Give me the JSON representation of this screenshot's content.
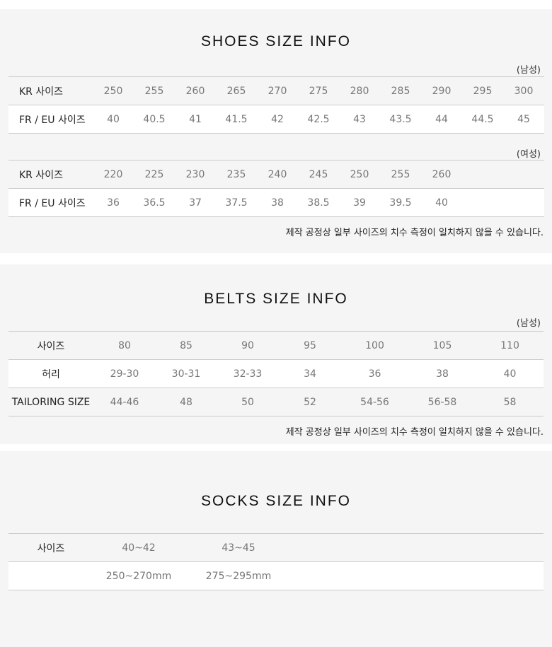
{
  "shoes": {
    "title": "SHOES SIZE INFO",
    "men": {
      "gender": "(남성)",
      "rows": [
        {
          "label": "KR 사이즈",
          "values": [
            "250",
            "255",
            "260",
            "265",
            "270",
            "275",
            "280",
            "285",
            "290",
            "295",
            "300"
          ]
        },
        {
          "label": "FR / EU 사이즈",
          "values": [
            "40",
            "40.5",
            "41",
            "41.5",
            "42",
            "42.5",
            "43",
            "43.5",
            "44",
            "44.5",
            "45"
          ]
        }
      ]
    },
    "women": {
      "gender": "(여성)",
      "rows": [
        {
          "label": "KR 사이즈",
          "values": [
            "220",
            "225",
            "230",
            "235",
            "240",
            "245",
            "250",
            "255",
            "260",
            "",
            ""
          ]
        },
        {
          "label": "FR / EU 사이즈",
          "values": [
            "36",
            "36.5",
            "37",
            "37.5",
            "38",
            "38.5",
            "39",
            "39.5",
            "40",
            "",
            ""
          ]
        }
      ]
    },
    "note": "제작 공정상 일부 사이즈의 치수 측정이 일치하지 않을 수 있습니다."
  },
  "belts": {
    "title": "BELTS SIZE INFO",
    "gender": "(남성)",
    "rows": [
      {
        "label": "사이즈",
        "values": [
          "80",
          "85",
          "90",
          "95",
          "100",
          "105",
          "110"
        ]
      },
      {
        "label": "허리",
        "values": [
          "29-30",
          "30-31",
          "32-33",
          "34",
          "36",
          "38",
          "40"
        ]
      },
      {
        "label": "TAILORING SIZE",
        "values": [
          "44-46",
          "48",
          "50",
          "52",
          "54-56",
          "56-58",
          "58"
        ]
      }
    ],
    "note": "제작 공정상 일부 사이즈의 치수 측정이 일치하지 않을 수 있습니다."
  },
  "socks": {
    "title": "SOCKS SIZE INFO",
    "rows": [
      {
        "label": "사이즈",
        "values": [
          "40~42",
          "43~45"
        ]
      },
      {
        "label": "",
        "values": [
          "250~270mm",
          "275~295mm"
        ]
      }
    ]
  }
}
